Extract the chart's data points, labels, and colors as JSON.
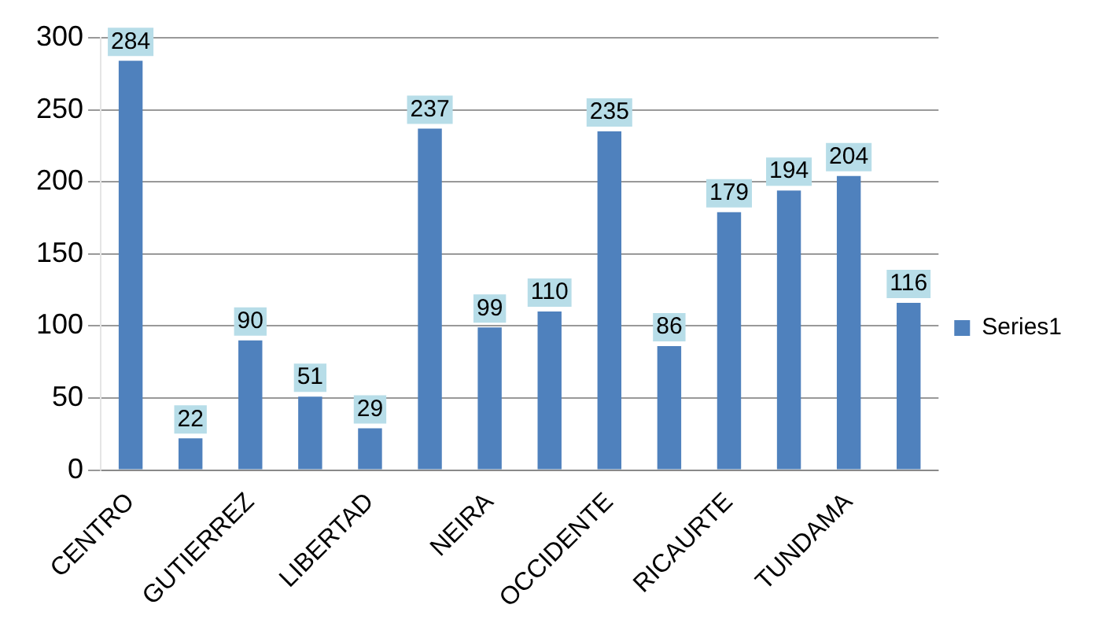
{
  "chart_data": {
    "type": "bar",
    "categories": [
      "CENTRO",
      null,
      "GUTIERREZ",
      null,
      "LIBERTAD",
      null,
      "NEIRA",
      null,
      "OCCIDENTE",
      null,
      "RICAURTE",
      null,
      "TUNDAMA",
      null
    ],
    "series": [
      {
        "name": "Series1",
        "color": "#4f81bd",
        "values": [
          284,
          22,
          90,
          51,
          29,
          237,
          99,
          110,
          235,
          86,
          179,
          194,
          204,
          116
        ]
      }
    ],
    "ylim": [
      0,
      300
    ],
    "yticks": [
      0,
      50,
      100,
      150,
      200,
      250,
      300
    ],
    "grid": "y",
    "legend": "right",
    "data_labels": true
  }
}
